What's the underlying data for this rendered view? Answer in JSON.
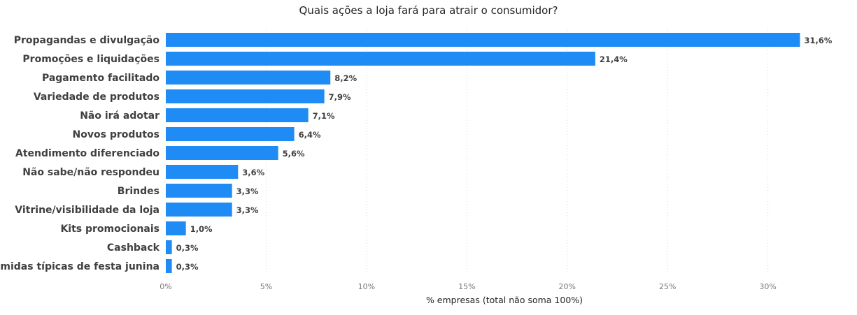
{
  "chart_data": {
    "type": "bar",
    "orientation": "horizontal",
    "title": "Quais ações a loja fará para atrair o consumidor?",
    "xlabel": "% empresas (total não soma 100%)",
    "ylabel": "",
    "xlim": [
      0,
      32
    ],
    "grid": true,
    "bar_color": "#1f8cf5",
    "categories": [
      "Propagandas e divulgação",
      "Promoções e liquidações",
      "Pagamento facilitado",
      "Variedade de produtos",
      "Não irá adotar",
      "Novos produtos",
      "Atendimento diferenciado",
      "Não sabe/não respondeu",
      "Brindes",
      "Vitrine/visibilidade da loja",
      "Kits promocionais",
      "Cashback",
      "Comidas típicas de festa junina"
    ],
    "values": [
      31.6,
      21.4,
      8.2,
      7.9,
      7.1,
      6.4,
      5.6,
      3.6,
      3.3,
      3.3,
      1.0,
      0.3,
      0.3
    ],
    "value_labels": [
      "31,6%",
      "21,4%",
      "8,2%",
      "7,9%",
      "7,1%",
      "6,4%",
      "5,6%",
      "3,6%",
      "3,3%",
      "3,3%",
      "1,0%",
      "0,3%",
      "0,3%"
    ],
    "ticks": [
      0,
      5,
      10,
      15,
      20,
      25,
      30
    ],
    "tick_labels": [
      "0%",
      "5%",
      "10%",
      "15%",
      "20%",
      "25%",
      "30%"
    ]
  }
}
